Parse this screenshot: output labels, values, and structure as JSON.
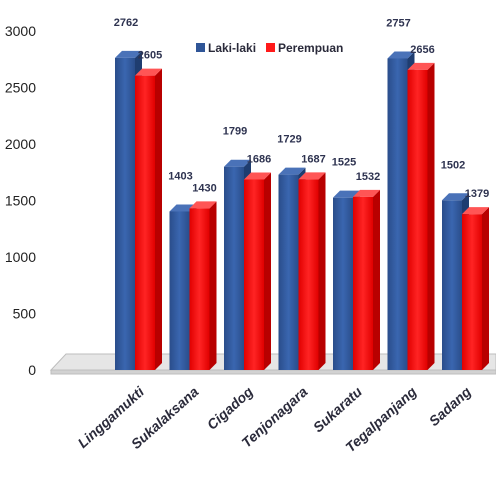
{
  "chart_data": {
    "type": "bar",
    "title": "",
    "xlabel": "",
    "ylabel": "",
    "categories": [
      "Linggamukti",
      "Sukalaksana",
      "Cigadog",
      "Tenjonagara",
      "Sukaratu",
      "Tegalpanjang",
      "Sadang"
    ],
    "series": [
      {
        "name": "Laki-laki",
        "values": [
          2762,
          1403,
          1799,
          1729,
          1525,
          2757,
          1502
        ]
      },
      {
        "name": "Perempuan",
        "values": [
          2605,
          1430,
          1686,
          1687,
          1532,
          2656,
          1379
        ]
      }
    ],
    "ylim": [
      0,
      3000
    ],
    "yticks": [
      "0",
      "500",
      "1000",
      "1500",
      "2000",
      "2500",
      "3000"
    ],
    "grid": false,
    "legend_position": "top-center",
    "three_d": true,
    "colors": {
      "Laki-laki": "#2f5597",
      "Perempuan": "#ff1a1a",
      "floor": "#e6e6e6"
    }
  }
}
